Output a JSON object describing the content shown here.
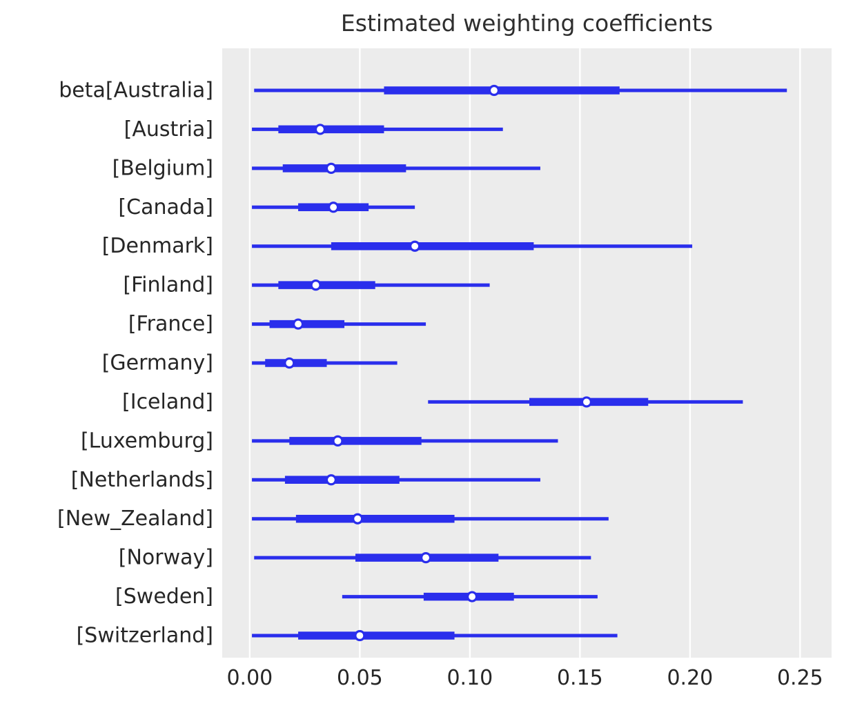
{
  "title": "Estimated weighting coefficients",
  "chart_data": {
    "type": "forest",
    "title": "Estimated weighting coefficients",
    "xlabel": "",
    "ylabel": "",
    "xlim": [
      -0.0125,
      0.2643
    ],
    "x_ticks": [
      0.0,
      0.05,
      0.1,
      0.15,
      0.2,
      0.25
    ],
    "x_tick_labels": [
      "0.00",
      "0.05",
      "0.10",
      "0.15",
      "0.20",
      "0.25"
    ],
    "grid": "vertical white gridlines on gray panel",
    "legend": "none",
    "marker": "open circle (white fill, blue edge) = point estimate; thick bar = inner credible interval; thin line = outer credible interval",
    "rows": [
      {
        "label": "beta[Australia]",
        "outer": [
          0.002,
          0.244
        ],
        "inner": [
          0.061,
          0.168
        ],
        "point": 0.111
      },
      {
        "label": "[Austria]",
        "outer": [
          0.001,
          0.115
        ],
        "inner": [
          0.013,
          0.061
        ],
        "point": 0.032
      },
      {
        "label": "[Belgium]",
        "outer": [
          0.001,
          0.132
        ],
        "inner": [
          0.015,
          0.071
        ],
        "point": 0.037
      },
      {
        "label": "[Canada]",
        "outer": [
          0.001,
          0.075
        ],
        "inner": [
          0.022,
          0.054
        ],
        "point": 0.038
      },
      {
        "label": "[Denmark]",
        "outer": [
          0.001,
          0.201
        ],
        "inner": [
          0.037,
          0.129
        ],
        "point": 0.075
      },
      {
        "label": "[Finland]",
        "outer": [
          0.001,
          0.109
        ],
        "inner": [
          0.013,
          0.057
        ],
        "point": 0.03
      },
      {
        "label": "[France]",
        "outer": [
          0.001,
          0.08
        ],
        "inner": [
          0.009,
          0.043
        ],
        "point": 0.022
      },
      {
        "label": "[Germany]",
        "outer": [
          0.001,
          0.067
        ],
        "inner": [
          0.007,
          0.035
        ],
        "point": 0.018
      },
      {
        "label": "[Iceland]",
        "outer": [
          0.081,
          0.224
        ],
        "inner": [
          0.127,
          0.181
        ],
        "point": 0.153
      },
      {
        "label": "[Luxemburg]",
        "outer": [
          0.001,
          0.14
        ],
        "inner": [
          0.018,
          0.078
        ],
        "point": 0.04
      },
      {
        "label": "[Netherlands]",
        "outer": [
          0.001,
          0.132
        ],
        "inner": [
          0.016,
          0.068
        ],
        "point": 0.037
      },
      {
        "label": "[New_Zealand]",
        "outer": [
          0.001,
          0.163
        ],
        "inner": [
          0.021,
          0.093
        ],
        "point": 0.049
      },
      {
        "label": "[Norway]",
        "outer": [
          0.002,
          0.155
        ],
        "inner": [
          0.048,
          0.113
        ],
        "point": 0.08
      },
      {
        "label": "[Sweden]",
        "outer": [
          0.042,
          0.158
        ],
        "inner": [
          0.079,
          0.12
        ],
        "point": 0.101
      },
      {
        "label": "[Switzerland]",
        "outer": [
          0.001,
          0.167
        ],
        "inner": [
          0.022,
          0.093
        ],
        "point": 0.05
      }
    ],
    "colors": {
      "interval": "#2a2eec",
      "marker_fill": "#ffffff",
      "plot_bg": "#ececec",
      "grid": "#ffffff",
      "tick_text": "#262626",
      "label_text": "#262626",
      "title_text": "#2e2e2e"
    }
  }
}
